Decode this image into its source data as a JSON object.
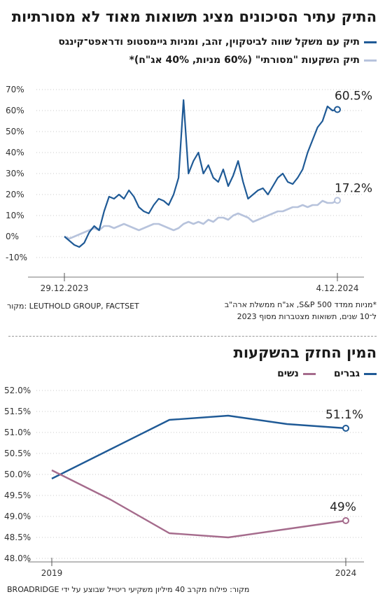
{
  "top": {
    "title": "התיק עתיר הסיכונים מציג תשואות מאוד לא מסורתיות",
    "legend": [
      {
        "label": "תיק עם משקל שווה לביטקוין, זהב, ומניות גיימסטופ ודראפט־קינגס",
        "color": "#1f5a96"
      },
      {
        "label": "תיק השקעות \"מסורתי\" (60% מניות, 40% אג\"ח)*",
        "color": "#b7c3dc"
      }
    ],
    "end_labels": [
      "60.5%",
      "17.2%"
    ],
    "note_line1": "*מניות ממדד S&P 500, אג\"ח ממשלת ארה\"ב",
    "note_line2": "ל־10 שנים, תשואות מצטברות מסוף 2023",
    "source": "מקור: LEUTHOLD GROUP, FACTSET"
  },
  "bottom": {
    "title": "המין החזק בהשקעות",
    "legend": [
      {
        "label": "גברים",
        "color": "#1f5a96"
      },
      {
        "label": "נשים",
        "color": "#a56b8c"
      }
    ],
    "end_labels": [
      "51.1%",
      "49%"
    ],
    "source": "מקור: פילוח מקרב 40 מיליון משקיעי ריטייל שבוצע על ידי BROADRIDGE"
  },
  "chart_data": [
    {
      "type": "line",
      "title": "התיק עתיר הסיכונים מציג תשואות מאוד לא מסורתיות",
      "x_tick_labels": [
        "29.12.2023",
        "4.12.2024"
      ],
      "y_ticks": [
        "70%",
        "60%",
        "50%",
        "40%",
        "30%",
        "20%",
        "10%",
        "0%",
        "-10%"
      ],
      "ylim": [
        -10,
        70
      ],
      "series": [
        {
          "name": "תיק עם משקל שווה לביטקוין, זהב, ומניות גיימסטופ ודראפט־קינגס",
          "values": [
            0,
            -2,
            -4,
            -5,
            -3,
            2,
            5,
            3,
            12,
            19,
            18,
            20,
            18,
            22,
            19,
            14,
            12,
            11,
            15,
            18,
            17,
            15,
            20,
            28,
            65,
            30,
            36,
            40,
            30,
            34,
            28,
            26,
            32,
            24,
            29,
            36,
            26,
            18,
            20,
            22,
            23,
            20,
            24,
            28,
            30,
            26,
            25,
            28,
            32,
            40,
            46,
            52,
            55,
            62,
            60,
            60.5
          ]
        },
        {
          "name": "תיק השקעות \"מסורתי\" (60% מניות, 40% אג\"ח)*",
          "values": [
            0,
            -1,
            0,
            1,
            2,
            3,
            4,
            3,
            5,
            5,
            4,
            5,
            6,
            5,
            4,
            3,
            4,
            5,
            6,
            6,
            5,
            4,
            3,
            4,
            6,
            7,
            6,
            7,
            6,
            8,
            7,
            9,
            9,
            8,
            10,
            11,
            10,
            9,
            7,
            8,
            9,
            10,
            11,
            12,
            12,
            13,
            14,
            14,
            15,
            14,
            15,
            15,
            17,
            16,
            16,
            17.2
          ]
        }
      ]
    },
    {
      "type": "line",
      "title": "המין החזק בהשקעות",
      "x_tick_labels": [
        "2019",
        "2024"
      ],
      "y_ticks": [
        "52.0%",
        "51.5%",
        "51.0%",
        "50.5%",
        "50.0%",
        "49.5%",
        "49.0%",
        "48.5%",
        "48.0%"
      ],
      "ylim": [
        48.0,
        52.0
      ],
      "series": [
        {
          "name": "גברים",
          "x": [
            2019,
            2020,
            2021,
            2022,
            2023,
            2024
          ],
          "values": [
            49.9,
            50.6,
            51.3,
            51.4,
            51.2,
            51.1
          ]
        },
        {
          "name": "נשים",
          "x": [
            2019,
            2020,
            2021,
            2022,
            2023,
            2024
          ],
          "values": [
            50.1,
            49.4,
            48.6,
            48.5,
            48.7,
            48.9
          ]
        }
      ]
    }
  ]
}
